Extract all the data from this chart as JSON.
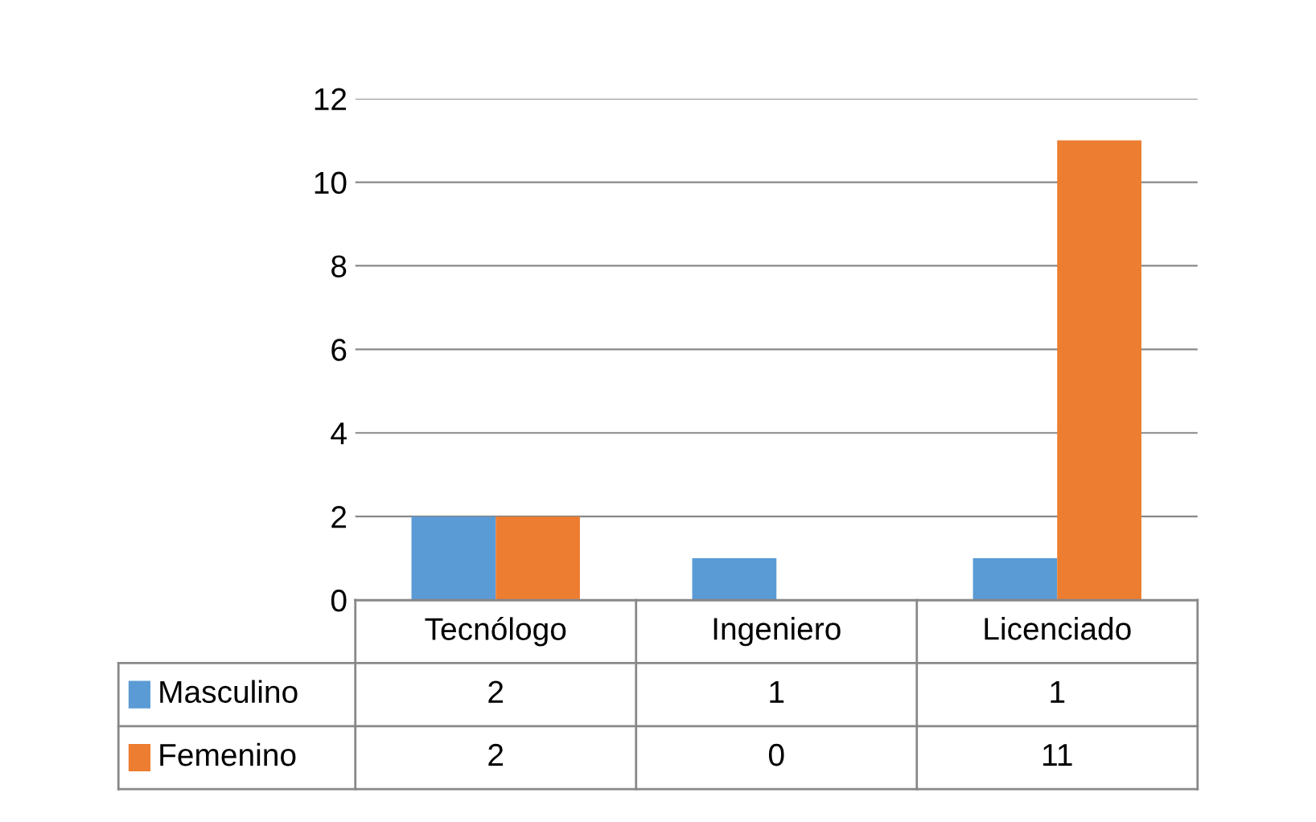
{
  "chart_data": {
    "type": "bar",
    "categories": [
      "Tecnólogo",
      "Ingeniero",
      "Licenciado"
    ],
    "series": [
      {
        "name": "Masculino",
        "color": "#5b9bd5",
        "values": [
          2,
          1,
          1
        ]
      },
      {
        "name": "Femenino",
        "color": "#ed7d31",
        "values": [
          2,
          0,
          11
        ]
      }
    ],
    "ylim": [
      0,
      12
    ],
    "yticks": [
      0,
      2,
      4,
      6,
      8,
      10,
      12
    ],
    "grid": "y",
    "legend": "bottom",
    "data_labels": true
  }
}
